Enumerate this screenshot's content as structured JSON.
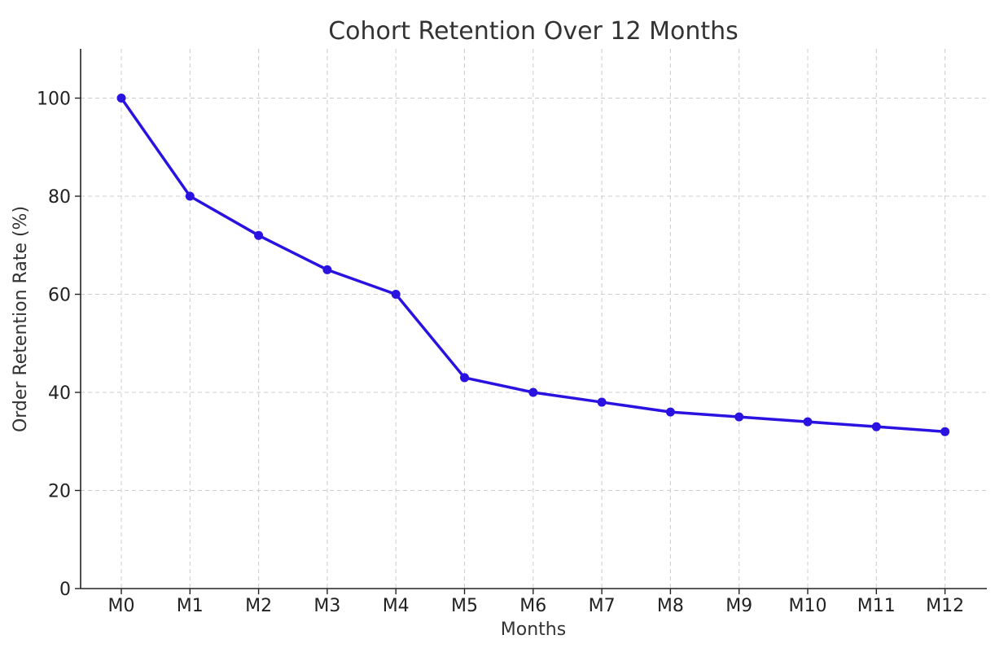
{
  "chart_data": {
    "type": "line",
    "title": "Cohort Retention Over 12 Months",
    "xlabel": "Months",
    "ylabel": "Order Retention Rate (%)",
    "categories": [
      "M0",
      "M1",
      "M2",
      "M3",
      "M4",
      "M5",
      "M6",
      "M7",
      "M8",
      "M9",
      "M10",
      "M11",
      "M12"
    ],
    "series": [
      {
        "values": [
          100,
          80,
          72,
          65,
          60,
          43,
          40,
          38,
          36,
          35,
          34,
          33,
          32
        ]
      }
    ],
    "ylim": [
      0,
      110
    ],
    "yticks": [
      0,
      20,
      40,
      60,
      80,
      100
    ],
    "grid": true,
    "line_color": "#2a12e0",
    "marker": "circle"
  }
}
